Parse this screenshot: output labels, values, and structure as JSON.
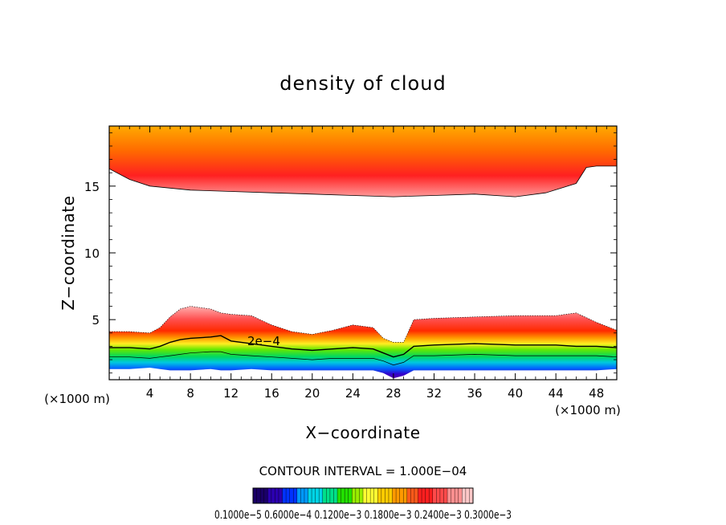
{
  "chart_data": {
    "type": "heatmap",
    "title": "density of cloud",
    "xlabel": "X−coordinate",
    "ylabel": "Z−coordinate",
    "x_unit_label": "(×1000 m)",
    "y_unit_label": "(×1000 m)",
    "xlim": [
      0,
      50
    ],
    "ylim": [
      0.5,
      19.5
    ],
    "x_ticks": [
      4,
      8,
      12,
      16,
      20,
      24,
      28,
      32,
      36,
      40,
      44,
      48
    ],
    "y_ticks": [
      5,
      10,
      15
    ],
    "contour_interval_text": "CONTOUR INTERVAL = 1.000E−04",
    "contour_label": "2e−4",
    "colorbar_text": "0.1000e−5 0.6000e−4 0.1200e−3 0.1800e−3 0.2400e−3 0.3000e−3",
    "upper_layer": {
      "top": 19.5,
      "base_x": [
        0,
        2,
        4,
        8,
        12,
        16,
        20,
        24,
        28,
        32,
        36,
        40,
        43,
        46,
        47,
        48,
        50
      ],
      "base_z": [
        16.3,
        15.5,
        15.0,
        14.7,
        14.6,
        14.5,
        14.4,
        14.3,
        14.2,
        14.3,
        14.4,
        14.2,
        14.5,
        15.2,
        16.4,
        16.5,
        16.5
      ],
      "peak_level": 0.6
    },
    "lower_layer": {
      "x": [
        0,
        2,
        4,
        5,
        6,
        7,
        8,
        10,
        11,
        12,
        14,
        16,
        18,
        20,
        22,
        24,
        26,
        27,
        28,
        29,
        30,
        32,
        36,
        40,
        44,
        46,
        48,
        50
      ],
      "top_z": [
        4.1,
        4.1,
        4.0,
        4.4,
        5.2,
        5.8,
        6.0,
        5.8,
        5.5,
        5.4,
        5.3,
        4.6,
        4.1,
        3.9,
        4.2,
        4.6,
        4.4,
        3.6,
        3.3,
        3.3,
        5.0,
        5.1,
        5.2,
        5.3,
        5.3,
        5.5,
        4.8,
        4.2
      ],
      "c2e4_z": [
        2.9,
        2.9,
        2.8,
        3.0,
        3.3,
        3.5,
        3.6,
        3.7,
        3.8,
        3.4,
        3.2,
        3.0,
        2.8,
        2.7,
        2.8,
        2.9,
        2.8,
        2.5,
        2.2,
        2.4,
        3.0,
        3.1,
        3.2,
        3.1,
        3.1,
        3.0,
        3.0,
        2.9
      ],
      "c3e4_z": [
        2.2,
        2.2,
        2.1,
        2.2,
        2.3,
        2.4,
        2.5,
        2.6,
        2.6,
        2.4,
        2.3,
        2.2,
        2.1,
        2.0,
        2.1,
        2.1,
        2.1,
        1.9,
        1.6,
        1.8,
        2.3,
        2.3,
        2.4,
        2.3,
        2.3,
        2.3,
        2.3,
        2.2
      ],
      "bottom_z": [
        1.3,
        1.3,
        1.4,
        1.3,
        1.2,
        1.2,
        1.2,
        1.3,
        1.2,
        1.2,
        1.3,
        1.2,
        1.2,
        1.2,
        1.2,
        1.2,
        1.2,
        1.0,
        0.6,
        0.8,
        1.2,
        1.2,
        1.2,
        1.2,
        1.2,
        1.2,
        1.2,
        1.3
      ]
    },
    "colormap": [
      "#1a0066",
      "#2b00b0",
      "#0033ff",
      "#0099ff",
      "#00d4e6",
      "#00e08a",
      "#22e000",
      "#99ee00",
      "#ffff33",
      "#ffcc00",
      "#ff9900",
      "#ff5a1a",
      "#ff1f1f",
      "#ff4a4a",
      "#ff9090",
      "#ffc8c8"
    ]
  }
}
